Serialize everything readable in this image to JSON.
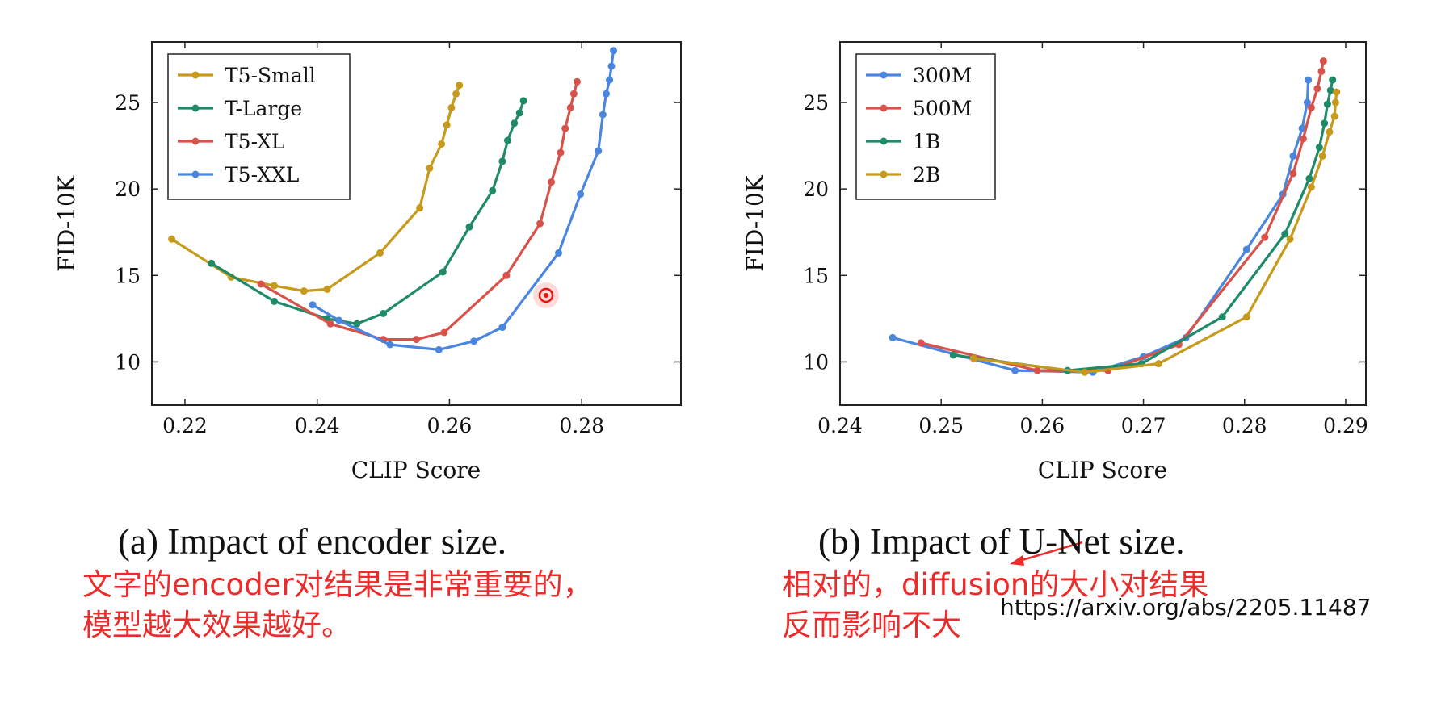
{
  "chart_data": [
    {
      "type": "line",
      "xlabel": "CLIP Score",
      "ylabel": "FID-10K",
      "xlim": [
        0.215,
        0.295
      ],
      "ylim": [
        7.5,
        28.5
      ],
      "xticks": [
        "0.22",
        "0.24",
        "0.26",
        "0.28"
      ],
      "xtick_values": [
        0.22,
        0.24,
        0.26,
        0.28
      ],
      "yticks": [
        "10",
        "15",
        "20",
        "25"
      ],
      "ytick_values": [
        10,
        15,
        20,
        25
      ],
      "legend_position": "top-left",
      "grid": false,
      "series": [
        {
          "name": "T5-Small",
          "color": "#c79a1c",
          "points": [
            [
              0.218,
              17.1
            ],
            [
              0.227,
              14.9
            ],
            [
              0.2335,
              14.4
            ],
            [
              0.238,
              14.1
            ],
            [
              0.2415,
              14.2
            ],
            [
              0.2495,
              16.3
            ],
            [
              0.2555,
              18.9
            ],
            [
              0.257,
              21.2
            ],
            [
              0.2588,
              22.6
            ],
            [
              0.2596,
              23.7
            ],
            [
              0.2603,
              24.7
            ],
            [
              0.261,
              25.5
            ],
            [
              0.2615,
              26.0
            ]
          ]
        },
        {
          "name": "T-Large",
          "color": "#1e8a68",
          "points": [
            [
              0.224,
              15.7
            ],
            [
              0.2335,
              13.5
            ],
            [
              0.2415,
              12.5
            ],
            [
              0.246,
              12.2
            ],
            [
              0.25,
              12.8
            ],
            [
              0.259,
              15.2
            ],
            [
              0.263,
              17.8
            ],
            [
              0.2665,
              19.9
            ],
            [
              0.268,
              21.6
            ],
            [
              0.2688,
              22.8
            ],
            [
              0.2698,
              23.8
            ],
            [
              0.2706,
              24.4
            ],
            [
              0.2712,
              25.1
            ]
          ]
        },
        {
          "name": "T5-XL",
          "color": "#d9524a",
          "points": [
            [
              0.2315,
              14.5
            ],
            [
              0.242,
              12.2
            ],
            [
              0.25,
              11.3
            ],
            [
              0.255,
              11.3
            ],
            [
              0.2592,
              11.7
            ],
            [
              0.2686,
              15.0
            ],
            [
              0.2737,
              18.0
            ],
            [
              0.2754,
              20.4
            ],
            [
              0.2768,
              22.1
            ],
            [
              0.2775,
              23.5
            ],
            [
              0.2783,
              24.7
            ],
            [
              0.2788,
              25.5
            ],
            [
              0.2793,
              26.2
            ]
          ]
        },
        {
          "name": "T5-XXL",
          "color": "#4a86e0",
          "points": [
            [
              0.2393,
              13.3
            ],
            [
              0.2433,
              12.4
            ],
            [
              0.251,
              11.0
            ],
            [
              0.2584,
              10.7
            ],
            [
              0.2637,
              11.2
            ],
            [
              0.268,
              12.0
            ],
            [
              0.2765,
              16.3
            ],
            [
              0.2798,
              19.7
            ],
            [
              0.2825,
              22.2
            ],
            [
              0.2832,
              24.3
            ],
            [
              0.2837,
              25.5
            ],
            [
              0.2842,
              26.3
            ],
            [
              0.2845,
              27.1
            ],
            [
              0.2848,
              28.0
            ]
          ]
        }
      ]
    },
    {
      "type": "line",
      "xlabel": "CLIP Score",
      "ylabel": "FID-10K",
      "xlim": [
        0.24,
        0.292
      ],
      "ylim": [
        7.5,
        28.5
      ],
      "xticks": [
        "0.24",
        "0.25",
        "0.26",
        "0.27",
        "0.28",
        "0.29"
      ],
      "xtick_values": [
        0.24,
        0.25,
        0.26,
        0.27,
        0.28,
        0.29
      ],
      "yticks": [
        "10",
        "15",
        "20",
        "25"
      ],
      "ytick_values": [
        10,
        15,
        20,
        25
      ],
      "legend_position": "top-left",
      "grid": false,
      "series": [
        {
          "name": "300M",
          "color": "#4a86e0",
          "points": [
            [
              0.2452,
              11.4
            ],
            [
              0.2573,
              9.5
            ],
            [
              0.265,
              9.4
            ],
            [
              0.27,
              10.3
            ],
            [
              0.2742,
              11.4
            ],
            [
              0.2802,
              16.5
            ],
            [
              0.2838,
              19.7
            ],
            [
              0.2848,
              21.9
            ],
            [
              0.2857,
              23.5
            ],
            [
              0.2862,
              25.0
            ],
            [
              0.2863,
              26.3
            ]
          ]
        },
        {
          "name": "500M",
          "color": "#d9524a",
          "points": [
            [
              0.248,
              11.1
            ],
            [
              0.2595,
              9.5
            ],
            [
              0.2665,
              9.5
            ],
            [
              0.2735,
              11.0
            ],
            [
              0.282,
              17.2
            ],
            [
              0.2848,
              20.9
            ],
            [
              0.2858,
              22.9
            ],
            [
              0.2866,
              24.7
            ],
            [
              0.2872,
              25.8
            ],
            [
              0.2876,
              26.8
            ],
            [
              0.2878,
              27.4
            ]
          ]
        },
        {
          "name": "1B",
          "color": "#1e8a68",
          "points": [
            [
              0.2512,
              10.4
            ],
            [
              0.2625,
              9.5
            ],
            [
              0.2698,
              9.9
            ],
            [
              0.2778,
              12.6
            ],
            [
              0.284,
              17.4
            ],
            [
              0.2864,
              20.6
            ],
            [
              0.2874,
              22.4
            ],
            [
              0.2879,
              23.8
            ],
            [
              0.2882,
              24.9
            ],
            [
              0.2885,
              25.7
            ],
            [
              0.2887,
              26.3
            ]
          ]
        },
        {
          "name": "2B",
          "color": "#c79a1c",
          "points": [
            [
              0.2532,
              10.2
            ],
            [
              0.2642,
              9.4
            ],
            [
              0.2715,
              9.9
            ],
            [
              0.2802,
              12.6
            ],
            [
              0.2845,
              17.1
            ],
            [
              0.2866,
              20.1
            ],
            [
              0.2877,
              21.9
            ],
            [
              0.2884,
              23.3
            ],
            [
              0.2889,
              24.2
            ],
            [
              0.289,
              25.0
            ],
            [
              0.2891,
              25.6
            ]
          ]
        }
      ]
    }
  ],
  "captions": {
    "left": "(a) Impact of encoder size.",
    "right": "(b) Impact of U-Net size."
  },
  "annotations": {
    "left_line1": "文字的encoder对结果是非常重要的，",
    "left_line2": "模型越大效果越好。",
    "right_line1": "相对的，diffusion的大小对结果",
    "right_line2": "反而影响不大",
    "url": "https://arxiv.org/abs/2205.11487",
    "accent_color": "#ee2b2b"
  }
}
